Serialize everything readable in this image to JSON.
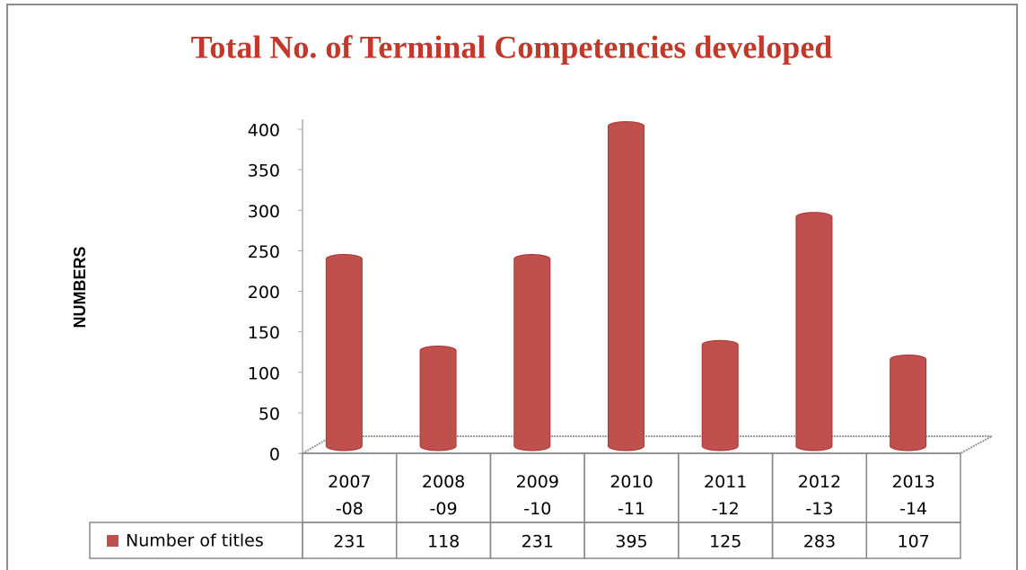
{
  "chart_data": {
    "type": "bar",
    "title": "Total No. of Terminal Competencies developed",
    "y_axis_label": "NUMBERS",
    "categories": [
      "2007-08",
      "2008-09",
      "2009-10",
      "2010-11",
      "2011-12",
      "2012-13",
      "2013-14"
    ],
    "series": [
      {
        "name": "Number of titles",
        "color": "#c0504d",
        "values": [
          231,
          118,
          231,
          395,
          125,
          283,
          107
        ]
      }
    ],
    "ylim": [
      0,
      400
    ],
    "yticks": [
      0,
      50,
      100,
      150,
      200,
      250,
      300,
      350,
      400
    ],
    "grid": false,
    "data_table": true
  }
}
